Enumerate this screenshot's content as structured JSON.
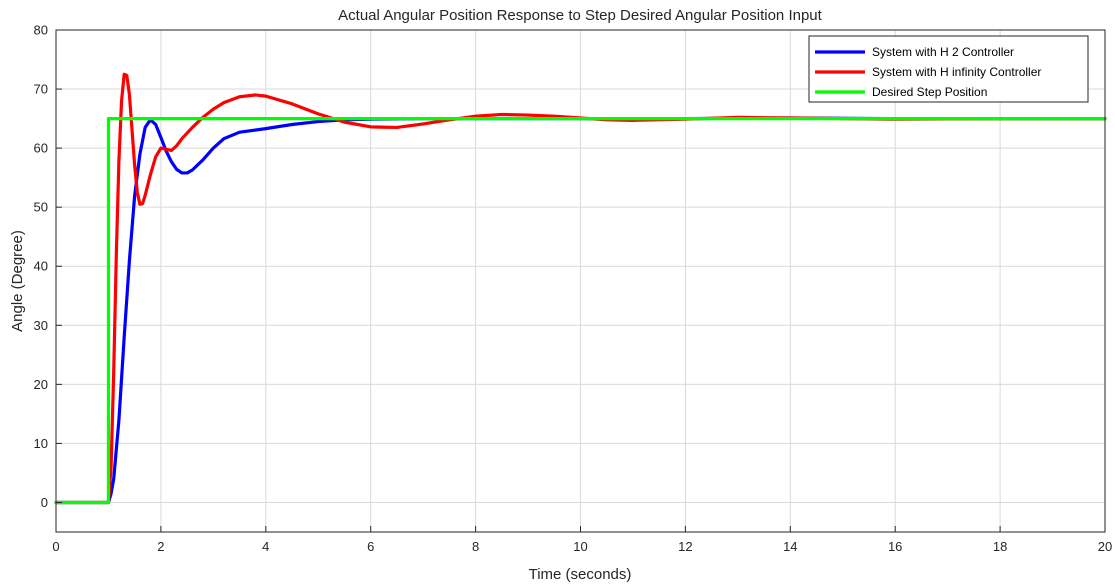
{
  "chart_data": {
    "type": "line",
    "title": "Actual Angular Position Response to Step Desired Angular Position Input",
    "xlabel": "Time (seconds)",
    "ylabel": "Angle (Degree)",
    "xlim": [
      0,
      20
    ],
    "ylim": [
      -5,
      80
    ],
    "xticks": [
      "0",
      "2",
      "4",
      "6",
      "8",
      "10",
      "12",
      "14",
      "16",
      "18",
      "20"
    ],
    "yticks": [
      "0",
      "10",
      "20",
      "30",
      "40",
      "50",
      "60",
      "70",
      "80"
    ],
    "grid": true,
    "legend_position": "top-right",
    "series": [
      {
        "name": "System with H 2 Controller",
        "color": "#0000ff",
        "points": [
          [
            0,
            0
          ],
          [
            1.0,
            0
          ],
          [
            1.05,
            1.5
          ],
          [
            1.1,
            4
          ],
          [
            1.2,
            14
          ],
          [
            1.3,
            28
          ],
          [
            1.4,
            41
          ],
          [
            1.5,
            52
          ],
          [
            1.6,
            59
          ],
          [
            1.7,
            63.5
          ],
          [
            1.8,
            64.8
          ],
          [
            1.9,
            64
          ],
          [
            2.0,
            61.8
          ],
          [
            2.1,
            59.5
          ],
          [
            2.2,
            57.7
          ],
          [
            2.3,
            56.4
          ],
          [
            2.4,
            55.8
          ],
          [
            2.5,
            55.8
          ],
          [
            2.6,
            56.3
          ],
          [
            2.8,
            58
          ],
          [
            3.0,
            60
          ],
          [
            3.2,
            61.6
          ],
          [
            3.5,
            62.7
          ],
          [
            4.0,
            63.3
          ],
          [
            4.5,
            64
          ],
          [
            5.0,
            64.5
          ],
          [
            5.5,
            64.8
          ],
          [
            6.0,
            64.9
          ],
          [
            7.0,
            65
          ],
          [
            8.0,
            65
          ],
          [
            10.0,
            65
          ],
          [
            12.0,
            65
          ],
          [
            14.0,
            65.1
          ],
          [
            16.0,
            65
          ],
          [
            18.0,
            65
          ],
          [
            20.0,
            65
          ]
        ]
      },
      {
        "name": "System with H infinity Controller",
        "color": "#ff0000",
        "points": [
          [
            0,
            0
          ],
          [
            1.0,
            0
          ],
          [
            1.05,
            6
          ],
          [
            1.1,
            22
          ],
          [
            1.15,
            42
          ],
          [
            1.2,
            58
          ],
          [
            1.25,
            68
          ],
          [
            1.3,
            72.5
          ],
          [
            1.35,
            72.3
          ],
          [
            1.4,
            69
          ],
          [
            1.45,
            63
          ],
          [
            1.5,
            57
          ],
          [
            1.55,
            52.5
          ],
          [
            1.6,
            50.5
          ],
          [
            1.65,
            50.6
          ],
          [
            1.7,
            52
          ],
          [
            1.8,
            55.5
          ],
          [
            1.9,
            58.5
          ],
          [
            2.0,
            60
          ],
          [
            2.1,
            59.8
          ],
          [
            2.2,
            59.6
          ],
          [
            2.3,
            60.4
          ],
          [
            2.4,
            61.6
          ],
          [
            2.6,
            63.5
          ],
          [
            2.8,
            65.2
          ],
          [
            3.0,
            66.6
          ],
          [
            3.2,
            67.7
          ],
          [
            3.5,
            68.7
          ],
          [
            3.8,
            69
          ],
          [
            4.0,
            68.8
          ],
          [
            4.5,
            67.5
          ],
          [
            5.0,
            65.8
          ],
          [
            5.5,
            64.4
          ],
          [
            6.0,
            63.6
          ],
          [
            6.5,
            63.5
          ],
          [
            7.0,
            64.1
          ],
          [
            7.5,
            64.8
          ],
          [
            8.0,
            65.4
          ],
          [
            8.5,
            65.7
          ],
          [
            9.0,
            65.6
          ],
          [
            9.5,
            65.4
          ],
          [
            10.0,
            65.1
          ],
          [
            10.5,
            64.8
          ],
          [
            11.0,
            64.7
          ],
          [
            12.0,
            64.9
          ],
          [
            13.0,
            65.2
          ],
          [
            14.0,
            65.1
          ],
          [
            15.0,
            65
          ],
          [
            16.0,
            64.9
          ],
          [
            18.0,
            65
          ],
          [
            20.0,
            65
          ]
        ]
      },
      {
        "name": "Desired Step Position",
        "color": "#00ff00",
        "points": [
          [
            0,
            0
          ],
          [
            1.0,
            0
          ],
          [
            1.0,
            65
          ],
          [
            20.0,
            65
          ]
        ]
      }
    ]
  }
}
